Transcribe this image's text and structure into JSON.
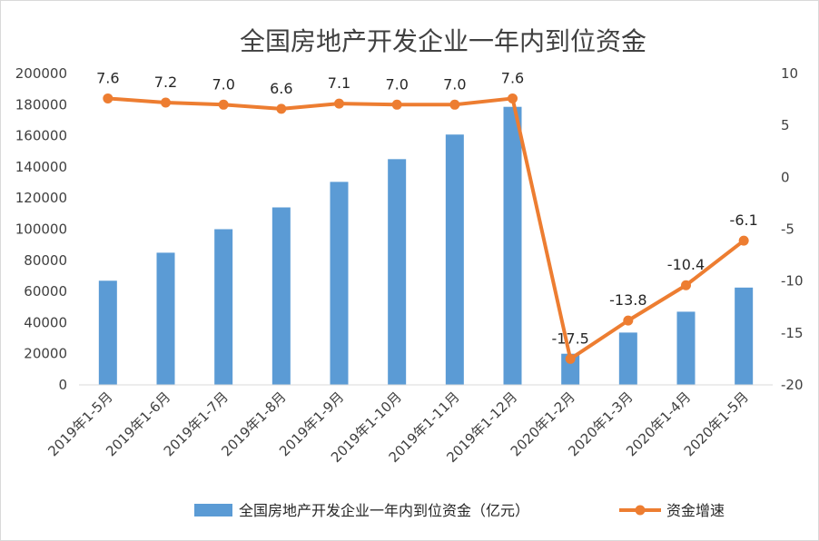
{
  "chart_data": {
    "type": "bar+line",
    "title": "全国房地产开发企业一年内到位资金",
    "categories": [
      "2019年1-5月",
      "2019年1-6月",
      "2019年1-7月",
      "2019年1-8月",
      "2019年1-9月",
      "2019年1-10月",
      "2019年1-11月",
      "2019年1-12月",
      "2020年1-2月",
      "2020年1-3月",
      "2020年1-4月",
      "2020年1-5月"
    ],
    "series": [
      {
        "name": "全国房地产开发企业一年内到位资金（亿元）",
        "type": "bar",
        "axis": "left",
        "color": "#5b9bd5",
        "values": [
          66900,
          84900,
          100000,
          114000,
          130400,
          145000,
          160800,
          178600,
          20000,
          33600,
          47000,
          62500
        ]
      },
      {
        "name": "资金增速",
        "type": "line",
        "axis": "right",
        "color": "#ed7d31",
        "values": [
          7.6,
          7.2,
          7.0,
          6.6,
          7.1,
          7.0,
          7.0,
          7.6,
          -17.5,
          -13.8,
          -10.4,
          -6.1
        ],
        "labels": [
          "7.6",
          "7.2",
          "7.0",
          "6.6",
          "7.1",
          "7.0",
          "7.0",
          "7.6",
          "-17.5",
          "-13.8",
          "-10.4",
          "-6.1"
        ]
      }
    ],
    "y_left": {
      "min": 0,
      "max": 200000,
      "ticks": [
        "0",
        "20000",
        "40000",
        "60000",
        "80000",
        "100000",
        "120000",
        "140000",
        "160000",
        "180000",
        "200000"
      ]
    },
    "y_right": {
      "min": -20,
      "max": 10,
      "ticks": [
        "-20",
        "-15",
        "-10",
        "-5",
        "0",
        "5",
        "10"
      ]
    },
    "grid": false,
    "legend_position": "bottom"
  }
}
